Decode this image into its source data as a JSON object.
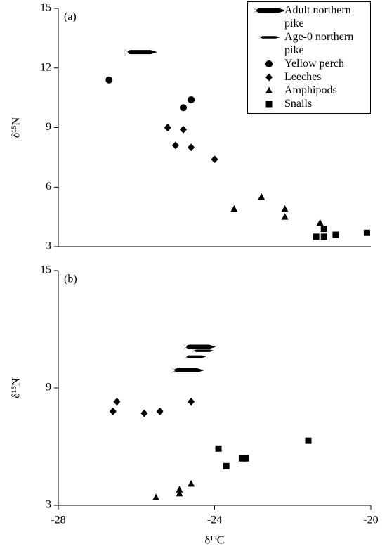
{
  "chart_data": [
    {
      "type": "scatter",
      "panel_label": "(a)",
      "y_label": "δ¹⁵N",
      "xlim": [
        -28,
        -20
      ],
      "ylim": [
        3,
        15
      ],
      "yticks": [
        3,
        6,
        9,
        12,
        15
      ],
      "legend": "upper right",
      "series": [
        {
          "name": "Adult northern pike",
          "marker": "pike-adult",
          "color": "#000000",
          "x": [
            -25.9
          ],
          "values": [
            12.8
          ]
        },
        {
          "name": "Age-0 northern pike",
          "marker": "pike-young",
          "color": "#000000",
          "x": [],
          "values": []
        },
        {
          "name": "Yellow perch",
          "marker": "circle",
          "color": "#000000",
          "x": [
            -26.7,
            -24.8,
            -24.6
          ],
          "values": [
            11.4,
            10.0,
            10.4
          ]
        },
        {
          "name": "Leeches",
          "marker": "diamond",
          "color": "#000000",
          "x": [
            -25.2,
            -24.8,
            -25.0,
            -24.6,
            -24.0
          ],
          "values": [
            9.0,
            8.9,
            8.1,
            8.0,
            7.4
          ]
        },
        {
          "name": "Amphipods",
          "marker": "triangle",
          "color": "#000000",
          "x": [
            -23.5,
            -22.8,
            -22.2,
            -22.2,
            -21.3
          ],
          "values": [
            4.9,
            5.5,
            4.9,
            4.5,
            4.2
          ]
        },
        {
          "name": "Snails",
          "marker": "square",
          "color": "#000000",
          "x": [
            -21.4,
            -21.2,
            -21.2,
            -20.9,
            -20.1
          ],
          "values": [
            3.5,
            3.5,
            3.9,
            3.6,
            3.7
          ]
        }
      ]
    },
    {
      "type": "scatter",
      "panel_label": "(b)",
      "y_label": "δ¹⁵N",
      "x_label": "δ¹³C",
      "xlim": [
        -28,
        -20
      ],
      "ylim": [
        3,
        15
      ],
      "yticks": [
        3,
        9,
        15
      ],
      "xticks": [
        -28,
        -24,
        -20
      ],
      "series": [
        {
          "marker": "pike-adult",
          "color": "#000000",
          "x": [
            -24.4,
            -24.7
          ],
          "values": [
            11.1,
            9.9
          ]
        },
        {
          "marker": "pike-young",
          "color": "#000000",
          "x": [
            -24.3,
            -24.5
          ],
          "values": [
            10.9,
            10.6
          ]
        },
        {
          "marker": "diamond",
          "color": "#000000",
          "x": [
            -26.6,
            -26.5,
            -25.8,
            -25.4,
            -24.6
          ],
          "values": [
            7.8,
            8.3,
            7.7,
            7.8,
            8.3
          ]
        },
        {
          "marker": "triangle",
          "color": "#000000",
          "x": [
            -25.5,
            -24.9,
            -24.9,
            -24.6
          ],
          "values": [
            3.4,
            3.8,
            3.6,
            4.1
          ]
        },
        {
          "marker": "square",
          "color": "#000000",
          "x": [
            -23.9,
            -23.7,
            -23.3,
            -23.2,
            -21.6
          ],
          "values": [
            5.9,
            5.0,
            5.4,
            5.4,
            6.3
          ]
        }
      ]
    }
  ]
}
